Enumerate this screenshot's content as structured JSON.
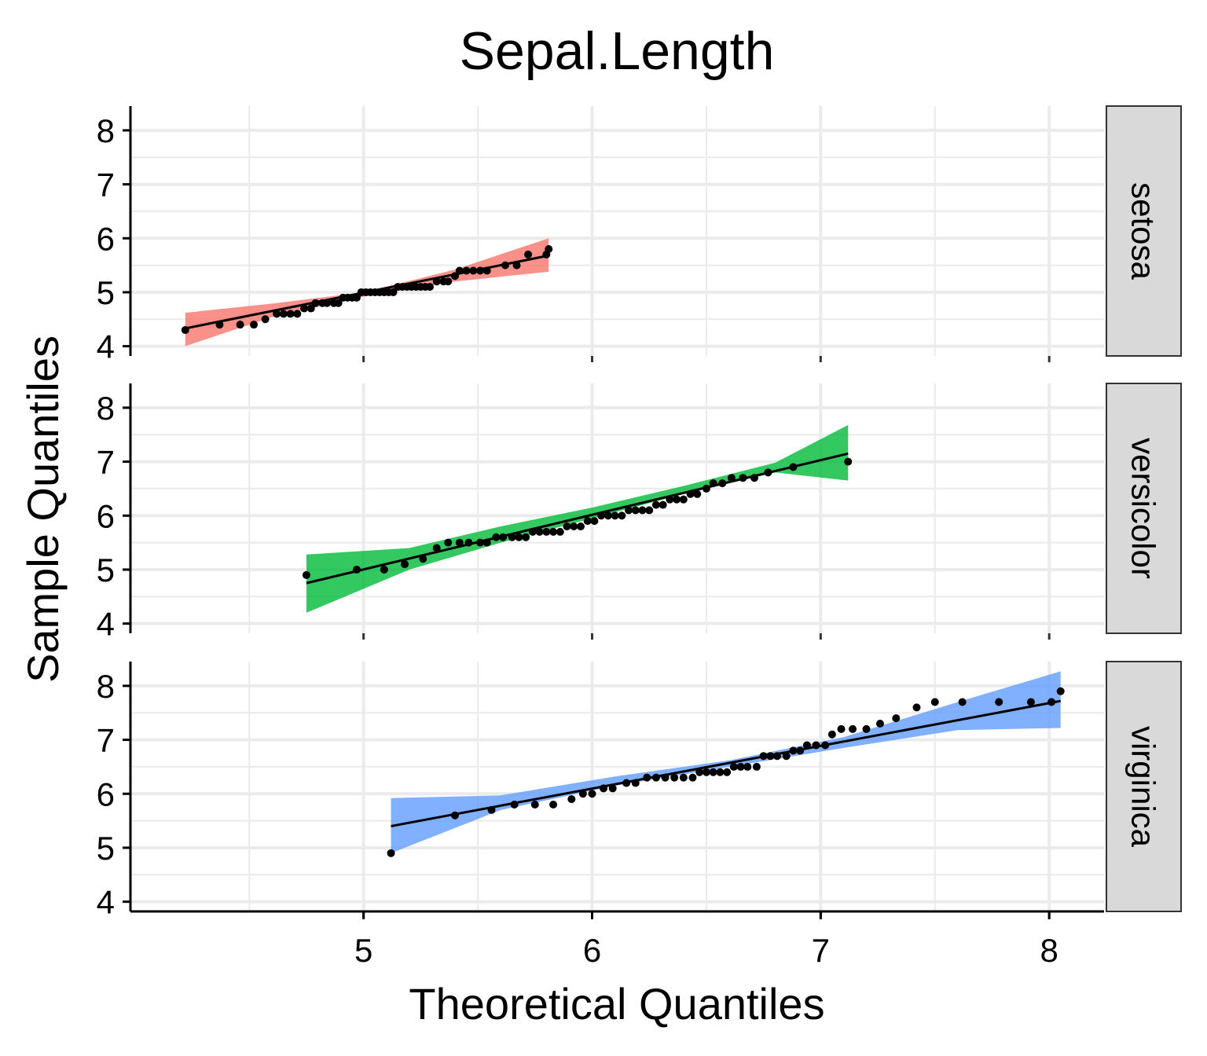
{
  "chart_data": {
    "type": "scatter",
    "title": "Sepal.Length",
    "xlabel": "Theoretical Quantiles",
    "ylabel": "Sample Quantiles",
    "xlim": [
      3.98,
      8.24
    ],
    "ylim": [
      3.82,
      8.45
    ],
    "x_ticks": [
      5,
      6,
      7,
      8
    ],
    "y_ticks": [
      4,
      5,
      6,
      7,
      8
    ],
    "grid": true,
    "legend": "none",
    "panels": [
      {
        "name": "setosa",
        "color": "#F8766D",
        "line": [
          [
            4.22,
            4.33
          ],
          [
            5.81,
            5.68
          ]
        ],
        "band_x": [
          4.22,
          4.6,
          5.0,
          5.4,
          5.81
        ],
        "band_lower": [
          4.0,
          4.54,
          4.92,
          5.2,
          5.38
        ],
        "band_upper": [
          4.62,
          4.79,
          5.0,
          5.42,
          6.0
        ],
        "points": [
          [
            4.22,
            4.3
          ],
          [
            4.37,
            4.4
          ],
          [
            4.46,
            4.4
          ],
          [
            4.52,
            4.4
          ],
          [
            4.57,
            4.5
          ],
          [
            4.62,
            4.6
          ],
          [
            4.65,
            4.6
          ],
          [
            4.68,
            4.6
          ],
          [
            4.71,
            4.6
          ],
          [
            4.74,
            4.7
          ],
          [
            4.77,
            4.7
          ],
          [
            4.79,
            4.8
          ],
          [
            4.82,
            4.8
          ],
          [
            4.84,
            4.8
          ],
          [
            4.87,
            4.8
          ],
          [
            4.89,
            4.8
          ],
          [
            4.91,
            4.9
          ],
          [
            4.93,
            4.9
          ],
          [
            4.95,
            4.9
          ],
          [
            4.97,
            4.9
          ],
          [
            4.99,
            5.0
          ],
          [
            5.01,
            5.0
          ],
          [
            5.03,
            5.0
          ],
          [
            5.05,
            5.0
          ],
          [
            5.07,
            5.0
          ],
          [
            5.09,
            5.0
          ],
          [
            5.11,
            5.0
          ],
          [
            5.13,
            5.0
          ],
          [
            5.15,
            5.1
          ],
          [
            5.17,
            5.1
          ],
          [
            5.19,
            5.1
          ],
          [
            5.21,
            5.1
          ],
          [
            5.23,
            5.1
          ],
          [
            5.25,
            5.1
          ],
          [
            5.27,
            5.1
          ],
          [
            5.29,
            5.1
          ],
          [
            5.32,
            5.2
          ],
          [
            5.35,
            5.2
          ],
          [
            5.37,
            5.2
          ],
          [
            5.4,
            5.3
          ],
          [
            5.42,
            5.4
          ],
          [
            5.45,
            5.4
          ],
          [
            5.48,
            5.4
          ],
          [
            5.51,
            5.4
          ],
          [
            5.54,
            5.4
          ],
          [
            5.62,
            5.5
          ],
          [
            5.67,
            5.5
          ],
          [
            5.72,
            5.7
          ],
          [
            5.8,
            5.7
          ],
          [
            5.81,
            5.8
          ]
        ]
      },
      {
        "name": "versicolor",
        "color": "#00BA38",
        "line": [
          [
            4.75,
            4.75
          ],
          [
            7.12,
            7.15
          ]
        ],
        "band_x": [
          4.75,
          5.2,
          5.6,
          6.0,
          6.4,
          6.8,
          7.12
        ],
        "band_lower": [
          4.2,
          5.0,
          5.5,
          5.95,
          6.4,
          6.8,
          6.65
        ],
        "band_upper": [
          5.28,
          5.4,
          5.8,
          6.15,
          6.55,
          6.98,
          7.68
        ],
        "points": [
          [
            4.75,
            4.9
          ],
          [
            4.97,
            5.0
          ],
          [
            5.09,
            5.0
          ],
          [
            5.18,
            5.1
          ],
          [
            5.26,
            5.2
          ],
          [
            5.32,
            5.4
          ],
          [
            5.37,
            5.5
          ],
          [
            5.42,
            5.5
          ],
          [
            5.46,
            5.5
          ],
          [
            5.51,
            5.5
          ],
          [
            5.54,
            5.5
          ],
          [
            5.58,
            5.6
          ],
          [
            5.61,
            5.6
          ],
          [
            5.65,
            5.6
          ],
          [
            5.68,
            5.6
          ],
          [
            5.71,
            5.6
          ],
          [
            5.74,
            5.7
          ],
          [
            5.77,
            5.7
          ],
          [
            5.8,
            5.7
          ],
          [
            5.83,
            5.7
          ],
          [
            5.86,
            5.7
          ],
          [
            5.89,
            5.8
          ],
          [
            5.92,
            5.8
          ],
          [
            5.95,
            5.8
          ],
          [
            5.98,
            5.9
          ],
          [
            6.01,
            5.9
          ],
          [
            6.04,
            6.0
          ],
          [
            6.07,
            6.0
          ],
          [
            6.1,
            6.0
          ],
          [
            6.13,
            6.0
          ],
          [
            6.16,
            6.1
          ],
          [
            6.19,
            6.1
          ],
          [
            6.22,
            6.1
          ],
          [
            6.25,
            6.1
          ],
          [
            6.28,
            6.2
          ],
          [
            6.31,
            6.2
          ],
          [
            6.34,
            6.3
          ],
          [
            6.37,
            6.3
          ],
          [
            6.4,
            6.3
          ],
          [
            6.43,
            6.4
          ],
          [
            6.46,
            6.4
          ],
          [
            6.5,
            6.5
          ],
          [
            6.53,
            6.6
          ],
          [
            6.57,
            6.6
          ],
          [
            6.61,
            6.7
          ],
          [
            6.66,
            6.7
          ],
          [
            6.71,
            6.7
          ],
          [
            6.77,
            6.8
          ],
          [
            6.88,
            6.9
          ],
          [
            7.12,
            7.0
          ]
        ]
      },
      {
        "name": "virginica",
        "color": "#619CFF",
        "line": [
          [
            5.12,
            5.4
          ],
          [
            8.05,
            7.72
          ]
        ],
        "band_x": [
          5.12,
          5.6,
          6.1,
          6.6,
          7.1,
          7.6,
          8.05
        ],
        "band_lower": [
          4.9,
          5.7,
          6.15,
          6.5,
          6.85,
          7.18,
          7.22
        ],
        "band_upper": [
          5.92,
          5.97,
          6.32,
          6.62,
          7.05,
          7.7,
          8.27
        ],
        "points": [
          [
            5.12,
            4.9
          ],
          [
            5.4,
            5.6
          ],
          [
            5.56,
            5.7
          ],
          [
            5.66,
            5.8
          ],
          [
            5.75,
            5.8
          ],
          [
            5.83,
            5.8
          ],
          [
            5.91,
            5.9
          ],
          [
            5.96,
            6.0
          ],
          [
            6.0,
            6.0
          ],
          [
            6.05,
            6.1
          ],
          [
            6.09,
            6.1
          ],
          [
            6.15,
            6.2
          ],
          [
            6.19,
            6.2
          ],
          [
            6.24,
            6.3
          ],
          [
            6.28,
            6.3
          ],
          [
            6.32,
            6.3
          ],
          [
            6.36,
            6.3
          ],
          [
            6.4,
            6.3
          ],
          [
            6.44,
            6.3
          ],
          [
            6.47,
            6.4
          ],
          [
            6.5,
            6.4
          ],
          [
            6.53,
            6.4
          ],
          [
            6.56,
            6.4
          ],
          [
            6.59,
            6.4
          ],
          [
            6.62,
            6.5
          ],
          [
            6.65,
            6.5
          ],
          [
            6.68,
            6.5
          ],
          [
            6.72,
            6.5
          ],
          [
            6.75,
            6.7
          ],
          [
            6.78,
            6.7
          ],
          [
            6.81,
            6.7
          ],
          [
            6.85,
            6.7
          ],
          [
            6.88,
            6.8
          ],
          [
            6.91,
            6.8
          ],
          [
            6.94,
            6.9
          ],
          [
            6.98,
            6.9
          ],
          [
            7.02,
            6.9
          ],
          [
            7.05,
            7.1
          ],
          [
            7.09,
            7.2
          ],
          [
            7.14,
            7.2
          ],
          [
            7.2,
            7.2
          ],
          [
            7.26,
            7.3
          ],
          [
            7.33,
            7.4
          ],
          [
            7.42,
            7.6
          ],
          [
            7.5,
            7.7
          ],
          [
            7.62,
            7.7
          ],
          [
            7.78,
            7.7
          ],
          [
            7.92,
            7.7
          ],
          [
            8.01,
            7.7
          ],
          [
            8.05,
            7.9
          ]
        ]
      }
    ]
  }
}
